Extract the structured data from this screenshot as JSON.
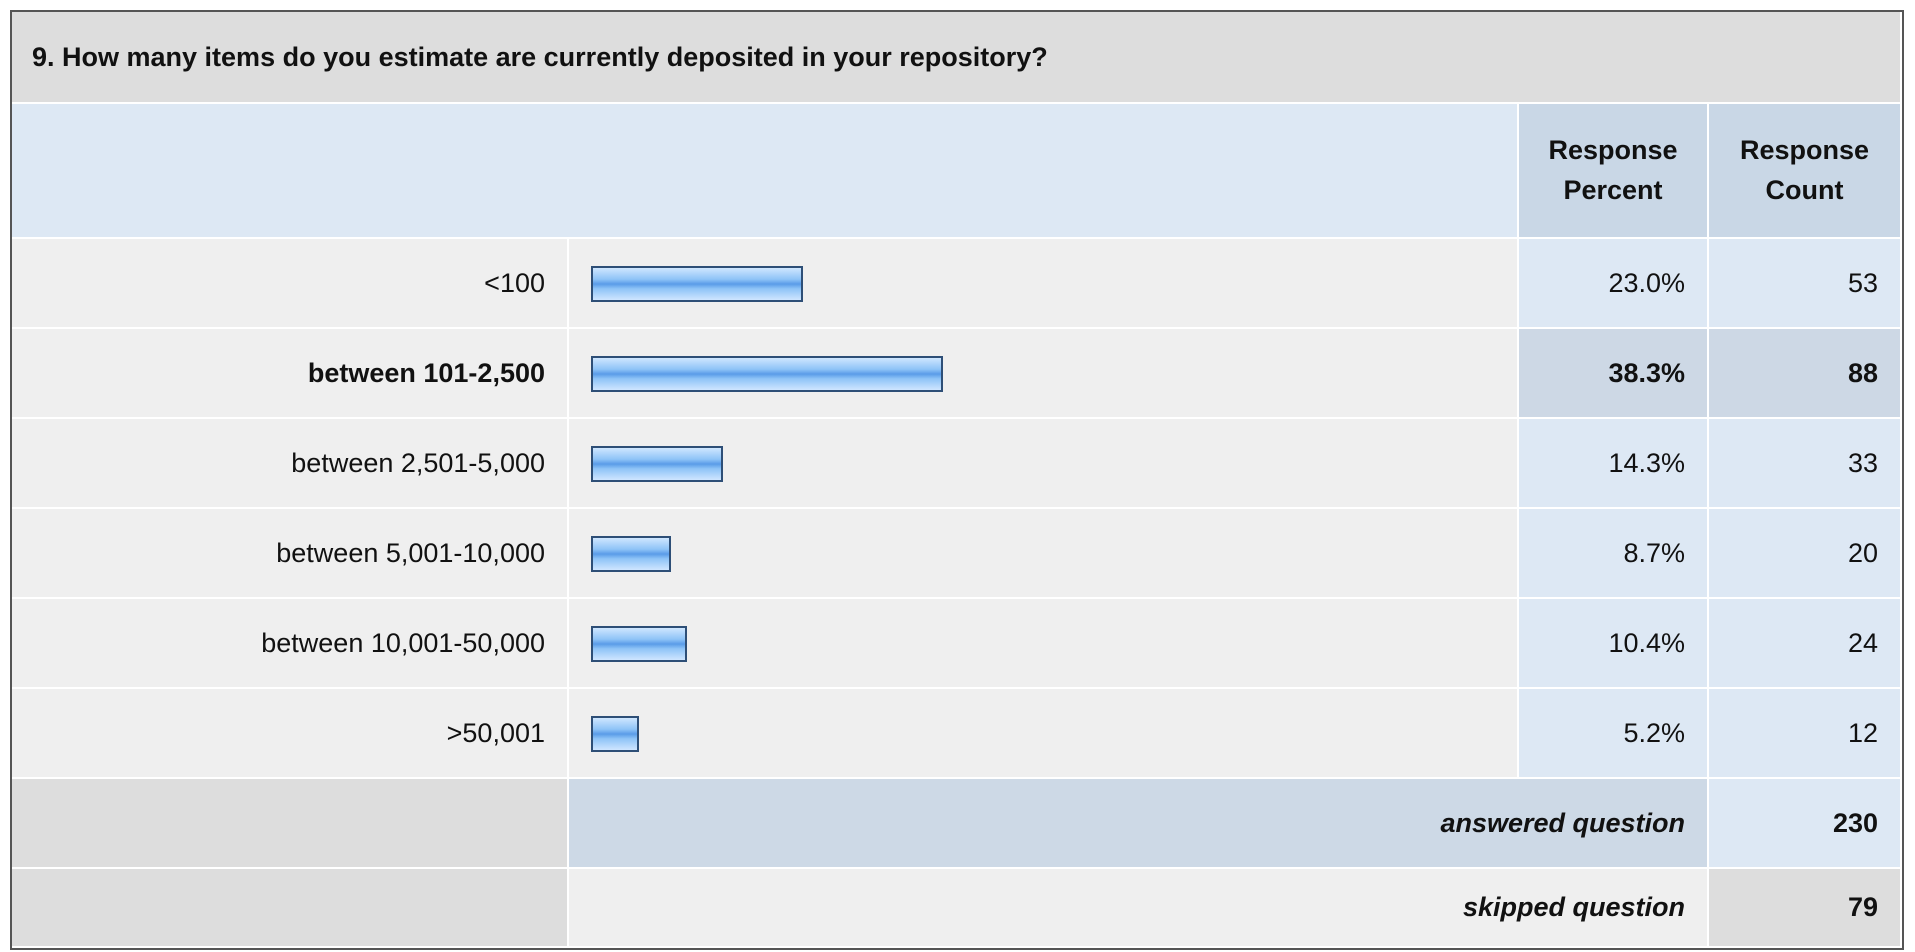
{
  "question": "9. How many items do you estimate are currently deposited in your repository?",
  "headers": [
    "Response Percent",
    "Response Count"
  ],
  "highlighted_row": 1,
  "rows": [
    {
      "label": "<100",
      "percent": 23.0,
      "percent_label": "23.0%",
      "count": 53
    },
    {
      "label": "between 101-2,500",
      "percent": 38.3,
      "percent_label": "38.3%",
      "count": 88
    },
    {
      "label": "between 2,501-5,000",
      "percent": 14.3,
      "percent_label": "14.3%",
      "count": 33
    },
    {
      "label": "between 5,001-10,000",
      "percent": 8.7,
      "percent_label": "8.7%",
      "count": 20
    },
    {
      "label": "between 10,001-50,000",
      "percent": 10.4,
      "percent_label": "10.4%",
      "count": 24
    },
    {
      "label": ">50,001",
      "percent": 5.2,
      "percent_label": "5.2%",
      "count": 12
    }
  ],
  "answered": {
    "label": "answered question",
    "count": 230
  },
  "skipped": {
    "label": "skipped question",
    "count": 79
  }
}
